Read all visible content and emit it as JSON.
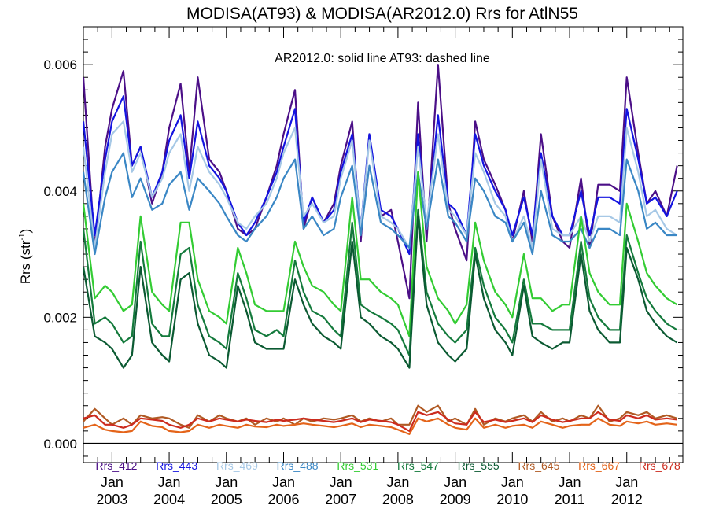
{
  "chart_data": {
    "type": "line",
    "title": "MODISA(AT93) & MODISA(AR2012.0)  Rrs for AtlN55",
    "annotation": "AR2012.0: solid line   AT93: dashed line",
    "ylabel_main": "Rrs (str",
    "ylabel_sup": "-1",
    "ylabel_end": ")",
    "xlabel": "",
    "xlim": [
      2002.5,
      2012.98
    ],
    "ylim": [
      -0.0003,
      0.0066
    ],
    "y_ticks": [
      "0.000",
      "0.002",
      "0.004",
      "0.006"
    ],
    "x_ticks": [
      {
        "top": "Jan",
        "year": "2003"
      },
      {
        "top": "Jan",
        "year": "2004"
      },
      {
        "top": "Jan",
        "year": "2005"
      },
      {
        "top": "Jan",
        "year": "2006"
      },
      {
        "top": "Jan",
        "year": "2007"
      },
      {
        "top": "Jan",
        "year": "2008"
      },
      {
        "top": "Jan",
        "year": "2009"
      },
      {
        "top": "Jan",
        "year": "2010"
      },
      {
        "top": "Jan",
        "year": "2011"
      },
      {
        "top": "Jan",
        "year": "2012"
      }
    ],
    "x": [
      2002.5,
      2002.7,
      2002.88,
      2003.0,
      2003.2,
      2003.35,
      2003.5,
      2003.7,
      2003.88,
      2004.0,
      2004.2,
      2004.35,
      2004.5,
      2004.7,
      2004.88,
      2005.0,
      2005.2,
      2005.35,
      2005.5,
      2005.7,
      2005.88,
      2006.0,
      2006.2,
      2006.35,
      2006.5,
      2006.7,
      2006.88,
      2007.0,
      2007.2,
      2007.35,
      2007.5,
      2007.7,
      2007.88,
      2008.0,
      2008.2,
      2008.35,
      2008.5,
      2008.7,
      2008.88,
      2009.0,
      2009.2,
      2009.35,
      2009.5,
      2009.7,
      2009.88,
      2010.0,
      2010.2,
      2010.35,
      2010.5,
      2010.7,
      2010.88,
      2011.0,
      2011.2,
      2011.35,
      2011.5,
      2011.7,
      2011.88,
      2012.0,
      2012.2,
      2012.35,
      2012.5,
      2012.7,
      2012.88
    ],
    "series": [
      {
        "name": "Rrs_412",
        "color": "#4b0f87",
        "values": [
          0.0058,
          0.0031,
          0.0047,
          0.0053,
          0.0059,
          0.0044,
          0.0047,
          0.0038,
          0.0043,
          0.005,
          0.0057,
          0.0043,
          0.0058,
          0.0045,
          0.0043,
          0.004,
          0.0034,
          0.0033,
          0.0034,
          0.0039,
          0.0044,
          0.0049,
          0.0056,
          0.0034,
          0.0039,
          0.0035,
          0.0038,
          0.0044,
          0.0051,
          0.0032,
          0.0049,
          0.0036,
          0.0037,
          0.0032,
          0.0023,
          0.0054,
          0.0032,
          0.006,
          0.0038,
          0.0034,
          0.0029,
          0.0051,
          0.0045,
          0.0041,
          0.0037,
          0.0032,
          0.004,
          0.0032,
          0.0049,
          0.0036,
          0.0032,
          0.0031,
          0.0042,
          0.0031,
          0.0041,
          0.0041,
          0.004,
          0.0058,
          0.0046,
          0.0038,
          0.004,
          0.0036,
          0.0044
        ]
      },
      {
        "name": "Rrs_443",
        "color": "#1414e0",
        "values": [
          0.0051,
          0.0033,
          0.0045,
          0.0051,
          0.0055,
          0.0044,
          0.0047,
          0.0039,
          0.0043,
          0.0048,
          0.0052,
          0.0042,
          0.0051,
          0.0044,
          0.0042,
          0.004,
          0.0035,
          0.0033,
          0.0035,
          0.0039,
          0.0043,
          0.0047,
          0.0053,
          0.0035,
          0.0039,
          0.0035,
          0.0037,
          0.0043,
          0.0049,
          0.0034,
          0.0049,
          0.0037,
          0.0036,
          0.0034,
          0.003,
          0.0049,
          0.0034,
          0.0052,
          0.0038,
          0.0037,
          0.0033,
          0.0049,
          0.0044,
          0.004,
          0.0037,
          0.0033,
          0.0039,
          0.0033,
          0.0046,
          0.0036,
          0.0033,
          0.0033,
          0.004,
          0.0033,
          0.0039,
          0.0039,
          0.0038,
          0.0053,
          0.0045,
          0.0038,
          0.0039,
          0.0036,
          0.004
        ]
      },
      {
        "name": "Rrs_469",
        "color": "#a6c8e6",
        "values": [
          0.0047,
          0.0031,
          0.0043,
          0.0049,
          0.0051,
          0.0043,
          0.0046,
          0.0039,
          0.0042,
          0.0046,
          0.0049,
          0.004,
          0.0047,
          0.0043,
          0.0041,
          0.0039,
          0.0035,
          0.0034,
          0.0036,
          0.0038,
          0.0042,
          0.0046,
          0.005,
          0.0036,
          0.0038,
          0.0035,
          0.0036,
          0.0042,
          0.0048,
          0.0034,
          0.0048,
          0.0036,
          0.0035,
          0.0034,
          0.0031,
          0.0047,
          0.0035,
          0.0049,
          0.0037,
          0.0036,
          0.0033,
          0.0046,
          0.0043,
          0.0038,
          0.0036,
          0.0032,
          0.0036,
          0.0031,
          0.0045,
          0.0034,
          0.0033,
          0.0033,
          0.0036,
          0.0032,
          0.0036,
          0.0036,
          0.0035,
          0.005,
          0.0043,
          0.0036,
          0.0037,
          0.0034,
          0.0033
        ]
      },
      {
        "name": "Rrs_488",
        "color": "#3a87c5",
        "values": [
          0.0043,
          0.003,
          0.0039,
          0.0043,
          0.0046,
          0.0039,
          0.0042,
          0.0037,
          0.0038,
          0.0041,
          0.0043,
          0.0037,
          0.0042,
          0.004,
          0.0038,
          0.0036,
          0.0033,
          0.0032,
          0.0034,
          0.0036,
          0.0039,
          0.0042,
          0.0045,
          0.0034,
          0.0036,
          0.0033,
          0.0034,
          0.0039,
          0.0044,
          0.0033,
          0.0044,
          0.0035,
          0.0034,
          0.0033,
          0.0031,
          0.0043,
          0.0034,
          0.0045,
          0.0036,
          0.0035,
          0.0032,
          0.0042,
          0.004,
          0.0036,
          0.0035,
          0.0032,
          0.0035,
          0.003,
          0.004,
          0.0033,
          0.0032,
          0.0032,
          0.0034,
          0.0031,
          0.0034,
          0.0034,
          0.0033,
          0.0045,
          0.004,
          0.0034,
          0.0035,
          0.0033,
          0.0033
        ]
      },
      {
        "name": "Rrs_531",
        "color": "#33cc33",
        "values": [
          0.0038,
          0.0023,
          0.0025,
          0.0024,
          0.0021,
          0.0022,
          0.0036,
          0.0024,
          0.0022,
          0.0021,
          0.0035,
          0.0035,
          0.0026,
          0.0021,
          0.002,
          0.0019,
          0.0031,
          0.0027,
          0.0022,
          0.0021,
          0.0021,
          0.0021,
          0.0032,
          0.0028,
          0.0025,
          0.0024,
          0.0022,
          0.0021,
          0.0039,
          0.0026,
          0.0026,
          0.0024,
          0.0023,
          0.0022,
          0.0017,
          0.0043,
          0.0028,
          0.0023,
          0.0021,
          0.0019,
          0.0022,
          0.0035,
          0.0029,
          0.0024,
          0.0022,
          0.002,
          0.003,
          0.0023,
          0.0023,
          0.0021,
          0.0022,
          0.0022,
          0.0036,
          0.0027,
          0.0024,
          0.0022,
          0.0022,
          0.0038,
          0.0032,
          0.0027,
          0.0025,
          0.0023,
          0.0022
        ]
      },
      {
        "name": "Rrs_547",
        "color": "#147a3c",
        "values": [
          0.0034,
          0.0019,
          0.002,
          0.0019,
          0.0016,
          0.0017,
          0.0032,
          0.0019,
          0.0017,
          0.0017,
          0.003,
          0.0031,
          0.0022,
          0.0017,
          0.0016,
          0.0015,
          0.0027,
          0.0023,
          0.0018,
          0.0017,
          0.0018,
          0.0017,
          0.0029,
          0.0024,
          0.0021,
          0.002,
          0.0018,
          0.0017,
          0.0035,
          0.0022,
          0.0021,
          0.002,
          0.0019,
          0.0018,
          0.0014,
          0.0037,
          0.0024,
          0.0019,
          0.0017,
          0.0016,
          0.0018,
          0.0031,
          0.0025,
          0.002,
          0.0018,
          0.0016,
          0.0026,
          0.0019,
          0.0019,
          0.0018,
          0.0018,
          0.0018,
          0.0032,
          0.0023,
          0.002,
          0.0018,
          0.0018,
          0.0033,
          0.0027,
          0.0023,
          0.0021,
          0.0019,
          0.0018
        ]
      },
      {
        "name": "Rrs_555",
        "color": "#0b5a32",
        "values": [
          0.0028,
          0.0017,
          0.0016,
          0.0015,
          0.0012,
          0.0014,
          0.0028,
          0.0016,
          0.0014,
          0.0013,
          0.0026,
          0.0027,
          0.0019,
          0.0014,
          0.0013,
          0.0012,
          0.0025,
          0.0021,
          0.0016,
          0.0015,
          0.0015,
          0.0015,
          0.0026,
          0.0022,
          0.0019,
          0.0017,
          0.0016,
          0.0015,
          0.0032,
          0.002,
          0.0019,
          0.0017,
          0.0016,
          0.0015,
          0.0012,
          0.0036,
          0.0022,
          0.0016,
          0.0014,
          0.0013,
          0.0015,
          0.003,
          0.0023,
          0.0018,
          0.0016,
          0.0014,
          0.0025,
          0.0017,
          0.0016,
          0.0015,
          0.0016,
          0.0016,
          0.003,
          0.0021,
          0.0018,
          0.0016,
          0.0016,
          0.0031,
          0.0026,
          0.0021,
          0.0019,
          0.0017,
          0.0016
        ]
      },
      {
        "name": "Rrs_645",
        "color": "#b05a24",
        "values": [
          0.00035,
          0.00055,
          0.0004,
          0.0003,
          0.0004,
          0.0003,
          0.00045,
          0.0004,
          0.00042,
          0.0004,
          0.0003,
          0.00025,
          0.00045,
          0.00035,
          0.00045,
          0.0004,
          0.00035,
          0.0004,
          0.0003,
          0.0004,
          0.00035,
          0.0004,
          0.0003,
          0.0004,
          0.00035,
          0.0004,
          0.00038,
          0.0004,
          0.00045,
          0.00035,
          0.0004,
          0.00035,
          0.0004,
          0.0003,
          0.0003,
          0.0006,
          0.0005,
          0.0006,
          0.00035,
          0.0004,
          0.0003,
          0.00055,
          0.0003,
          0.0004,
          0.00035,
          0.0004,
          0.00045,
          0.00035,
          0.0005,
          0.00035,
          0.0004,
          0.00035,
          0.00045,
          0.0004,
          0.0006,
          0.00035,
          0.0004,
          0.0005,
          0.00045,
          0.0005,
          0.0004,
          0.00045,
          0.0004
        ]
      },
      {
        "name": "Rrs_667",
        "color": "#e4641a",
        "values": [
          0.00025,
          0.0003,
          0.00022,
          0.0002,
          0.00018,
          0.0002,
          0.00035,
          0.00028,
          0.00026,
          0.0002,
          0.00018,
          0.0002,
          0.0003,
          0.00025,
          0.0003,
          0.00028,
          0.00025,
          0.0003,
          0.00027,
          0.00026,
          0.0003,
          0.00028,
          0.0003,
          0.00032,
          0.0003,
          0.00028,
          0.00026,
          0.00028,
          0.00032,
          0.00026,
          0.0003,
          0.00028,
          0.00026,
          0.00022,
          0.00015,
          0.0004,
          0.00035,
          0.0004,
          0.0003,
          0.00025,
          0.00022,
          0.0004,
          0.00025,
          0.0003,
          0.00025,
          0.00028,
          0.0003,
          0.00025,
          0.00035,
          0.0003,
          0.00025,
          0.00028,
          0.0003,
          0.0003,
          0.0004,
          0.0003,
          0.00028,
          0.00035,
          0.00032,
          0.00035,
          0.0003,
          0.00032,
          0.0003
        ]
      },
      {
        "name": "Rrs_678",
        "color": "#cc2b1e",
        "values": [
          0.0004,
          0.00045,
          0.0003,
          0.0003,
          0.00025,
          0.0003,
          0.0004,
          0.00038,
          0.00036,
          0.0003,
          0.00025,
          0.0003,
          0.0004,
          0.00035,
          0.0004,
          0.00038,
          0.00035,
          0.00038,
          0.00036,
          0.00034,
          0.00038,
          0.00036,
          0.00038,
          0.0004,
          0.00038,
          0.00036,
          0.00034,
          0.00036,
          0.0004,
          0.00034,
          0.00038,
          0.00036,
          0.00034,
          0.0003,
          0.0002,
          0.0005,
          0.00045,
          0.0005,
          0.00038,
          0.00032,
          0.0003,
          0.0005,
          0.00034,
          0.00038,
          0.00034,
          0.00036,
          0.0004,
          0.00034,
          0.00045,
          0.00038,
          0.00034,
          0.00036,
          0.0004,
          0.0004,
          0.0005,
          0.00038,
          0.00036,
          0.00045,
          0.0004,
          0.00045,
          0.00038,
          0.0004,
          0.00038
        ]
      }
    ]
  }
}
